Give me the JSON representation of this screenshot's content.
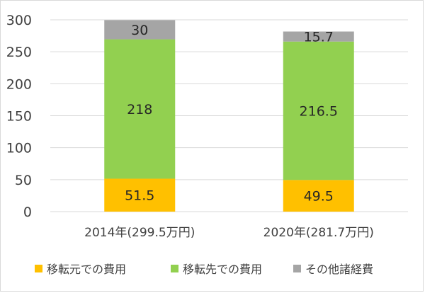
{
  "chart_data": {
    "type": "bar",
    "stacked": true,
    "categories": [
      "2014年(299.5万円)",
      "2020年(281.7万円)"
    ],
    "series": [
      {
        "name": "移転元での費用",
        "values": [
          51.5,
          49.5
        ],
        "labels": [
          "51.5",
          "49.5"
        ],
        "color": "#FFC000"
      },
      {
        "name": "移転先での費用",
        "values": [
          218,
          216.5
        ],
        "labels": [
          "218",
          "216.5"
        ],
        "color": "#92D050"
      },
      {
        "name": "その他諸経費",
        "values": [
          30,
          15.7
        ],
        "labels": [
          "30",
          "15.7"
        ],
        "color": "#A5A5A5"
      }
    ],
    "yticks": [
      "0",
      "50",
      "100",
      "150",
      "200",
      "250",
      "300"
    ],
    "ylim": [
      0,
      300
    ],
    "grid": true,
    "legend": "bottom",
    "title": "",
    "xlabel": "",
    "ylabel": ""
  }
}
